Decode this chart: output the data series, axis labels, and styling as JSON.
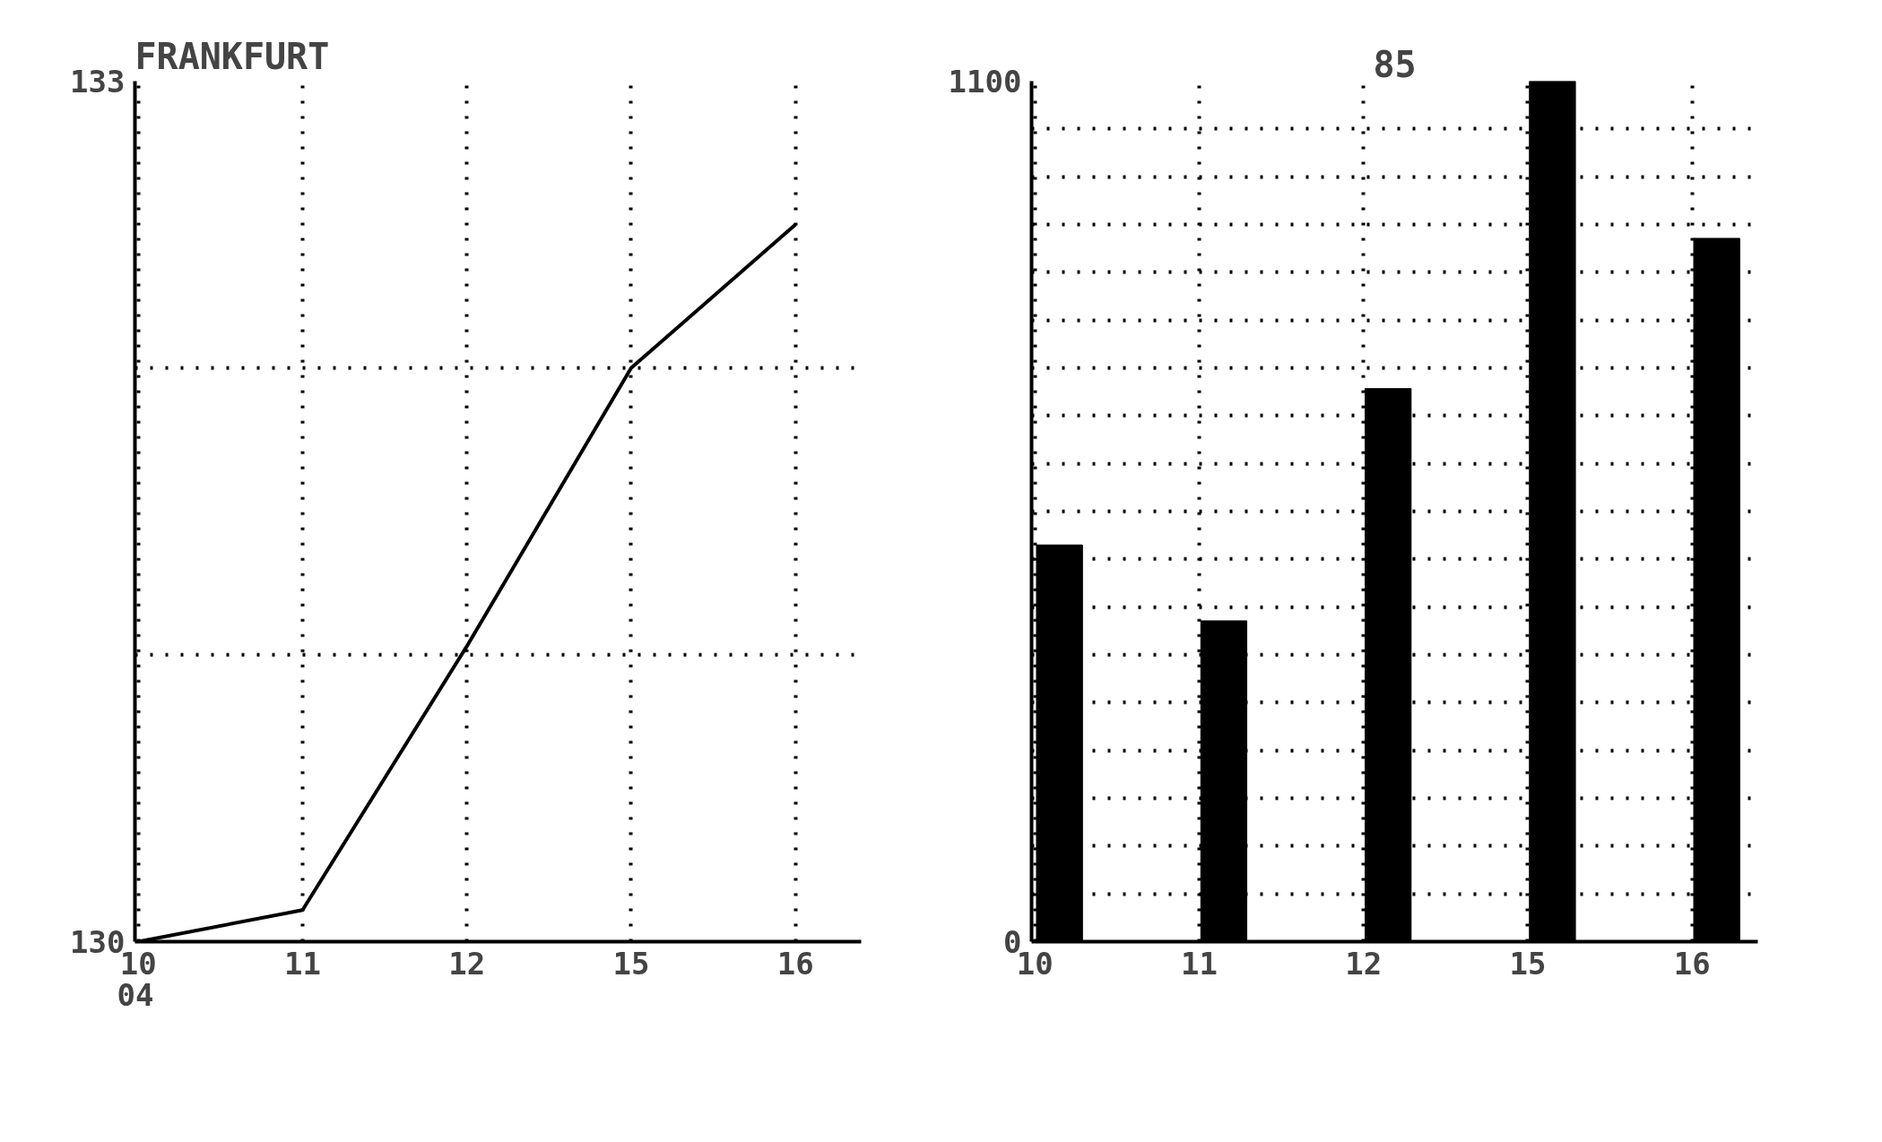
{
  "chart_data": [
    {
      "type": "line",
      "title": "FRANKFURT",
      "categories": [
        "10",
        "11",
        "12",
        "15",
        "16"
      ],
      "values": [
        130.0,
        130.11,
        131.03,
        132.0,
        132.5
      ],
      "color": "#000000",
      "ylim": [
        130,
        133
      ],
      "yticks": [
        130,
        {
          "value": 131,
          "label": null
        },
        {
          "value": 132,
          "label": null
        },
        133
      ],
      "grid": true,
      "annotations": [
        "04"
      ]
    },
    {
      "type": "bar",
      "title": "85",
      "categories": [
        "10",
        "11",
        "12",
        "15",
        "16"
      ],
      "values": [
        507,
        410,
        707,
        1100,
        899
      ],
      "color": "#000000",
      "ylim": [
        0,
        1100
      ],
      "yticks": [
        0,
        {
          "value": 61.1,
          "label": null
        },
        {
          "value": 122.2,
          "label": null
        },
        {
          "value": 183.3,
          "label": null
        },
        {
          "value": 244.4,
          "label": null
        },
        {
          "value": 305.6,
          "label": null
        },
        {
          "value": 366.7,
          "label": null
        },
        {
          "value": 427.8,
          "label": null
        },
        {
          "value": 488.9,
          "label": null
        },
        {
          "value": 550,
          "label": null
        },
        {
          "value": 611.1,
          "label": null
        },
        {
          "value": 672.2,
          "label": null
        },
        {
          "value": 733.3,
          "label": null
        },
        {
          "value": 794.4,
          "label": null
        },
        {
          "value": 855.6,
          "label": null
        },
        {
          "value": 916.7,
          "label": null
        },
        {
          "value": 977.8,
          "label": null
        },
        {
          "value": 1038.9,
          "label": null
        },
        1100
      ],
      "grid": true
    }
  ]
}
